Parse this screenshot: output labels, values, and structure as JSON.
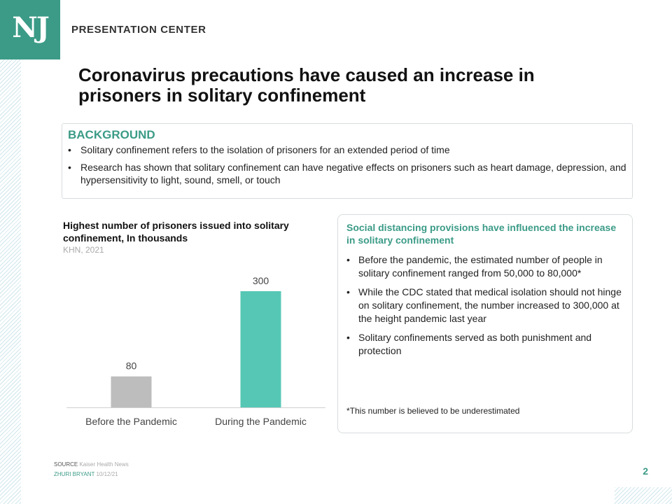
{
  "header": {
    "logo": "NJ",
    "brand": "PRESENTATION CENTER",
    "title": "Coronavirus precautions have caused an increase in prisoners in solitary confinement"
  },
  "background": {
    "heading": "BACKGROUND",
    "bullets": [
      "Solitary confinement refers to the isolation of prisoners for an extended period of time",
      "Research has shown that solitary confinement can have negative effects on prisoners such as heart damage, depression, and hypersensitivity to light, sound, smell, or touch"
    ]
  },
  "chart": {
    "title": "Highest number of prisoners issued into solitary confinement, In thousands",
    "source": "KHN, 2021"
  },
  "chart_data": {
    "type": "bar",
    "categories": [
      "Before the Pandemic",
      "During the Pandemic"
    ],
    "values": [
      80,
      300
    ],
    "title": "Highest number of prisoners issued into solitary confinement, In thousands",
    "xlabel": "",
    "ylabel": "",
    "ylim": [
      0,
      300
    ],
    "grid": false,
    "colors": [
      "#bdbdbd",
      "#56c7b5"
    ]
  },
  "side": {
    "heading": "Social distancing provisions have influenced the increase in solitary confinement",
    "bullets": [
      "Before the pandemic, the estimated number of people in solitary confinement ranged from 50,000 to 80,000*",
      "While the CDC stated that medical isolation should not hinge on solitary confinement, the number increased to 300,000 at the height pandemic last year",
      "Solitary confinements served as both punishment and protection"
    ],
    "note": "*This number is believed to be underestimated"
  },
  "footer": {
    "source_label": "SOURCE",
    "source_text": "Kaiser Health News",
    "author_label": "ZHURI BRYANT",
    "date": "10/12/21",
    "page": "2"
  },
  "colors": {
    "accent": "#3b9b87",
    "bar_before": "#bdbdbd",
    "bar_during": "#56c7b5"
  }
}
